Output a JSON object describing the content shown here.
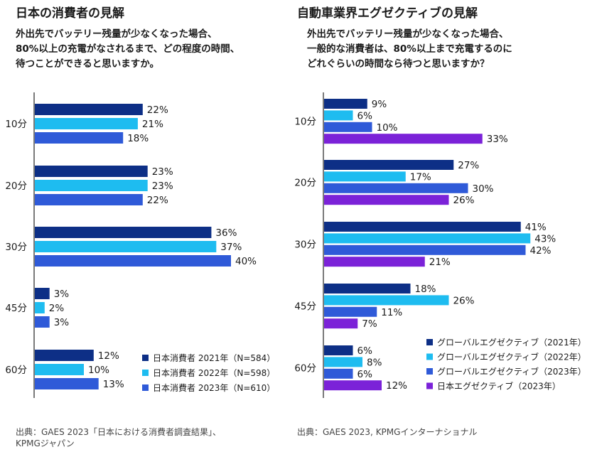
{
  "left": {
    "title": "日本の消費者の見解",
    "subtitle": "外出先でバッテリー残量が少なくなった場合、\n80%以上の充電がなされるまで、どの程度の時間、\n待つことができると思いますか。",
    "source": "出典：GAES 2023「日本における消費者調査結果」、\nKPMGジャパン"
  },
  "right": {
    "title": "自動車業界エグゼクティブの見解",
    "subtitle": "外出先でバッテリー残量が少なくなった場合、\n一般的な消費者は、80%以上まで充電するのに\nどれぐらいの時間なら待つと思いますか？",
    "source": "出典：GAES 2023, KPMGインターナショナル"
  },
  "chart_data": [
    {
      "type": "bar",
      "orientation": "horizontal",
      "categories": [
        "10分",
        "20分",
        "30分",
        "45分",
        "60分"
      ],
      "series": [
        {
          "name": "日本消費者 2021年（N=584）",
          "color": "#0d2f86",
          "values": [
            22,
            23,
            36,
            3,
            12
          ]
        },
        {
          "name": "日本消費者 2022年（N=598）",
          "color": "#1ebcf0",
          "values": [
            21,
            23,
            37,
            2,
            10
          ]
        },
        {
          "name": "日本消費者 2023年（N=610）",
          "color": "#2f5ad8",
          "values": [
            18,
            22,
            40,
            3,
            13
          ]
        }
      ],
      "value_suffix": "%",
      "legend_position": "bottom-right",
      "grid": false
    },
    {
      "type": "bar",
      "orientation": "horizontal",
      "categories": [
        "10分",
        "20分",
        "30分",
        "45分",
        "60分"
      ],
      "series": [
        {
          "name": "グローバルエグゼクティブ（2021年）",
          "color": "#0d2f86",
          "values": [
            9,
            27,
            41,
            18,
            6
          ]
        },
        {
          "name": "グローバルエグゼクティブ（2022年）",
          "color": "#1ebcf0",
          "values": [
            6,
            17,
            43,
            26,
            8
          ]
        },
        {
          "name": "グローバルエグゼクティブ（2023年）",
          "color": "#2f5ad8",
          "values": [
            10,
            30,
            42,
            11,
            6
          ]
        },
        {
          "name": "日本エグゼクティブ（2023年）",
          "color": "#7b22d8",
          "values": [
            33,
            26,
            21,
            7,
            12
          ]
        }
      ],
      "value_suffix": "%",
      "legend_position": "bottom-right",
      "grid": false
    }
  ]
}
